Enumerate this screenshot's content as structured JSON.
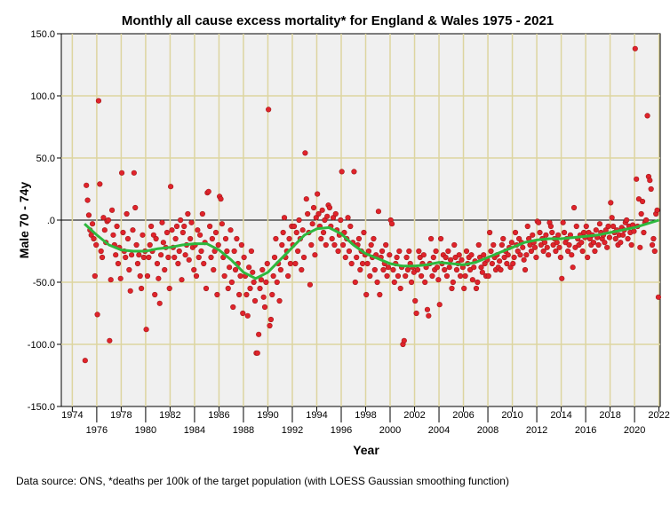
{
  "chart_data": {
    "type": "scatter",
    "title": "Monthly all cause excess mortality* for England & Wales 1975 - 2021",
    "xlabel": "Year",
    "ylabel": "Male 70 - 74y",
    "footnote": "Data source: ONS, *deaths per 100k of the target population (with LOESS Gaussian smoothing function)",
    "xlim": [
      1973.1,
      2022.1
    ],
    "ylim": [
      -150,
      150
    ],
    "y_ticks": [
      "150.0",
      "100.0",
      "50.0",
      ".0",
      "-50.0",
      "-100.0",
      "-150.0"
    ],
    "y_tick_values": [
      150,
      100,
      50,
      0,
      -50,
      -100,
      -150
    ],
    "x_ticks": [
      "1974",
      "1976",
      "1978",
      "1980",
      "1982",
      "1984",
      "1986",
      "1988",
      "1990",
      "1992",
      "1994",
      "1996",
      "1998",
      "2000",
      "2002",
      "2004",
      "2006",
      "2008",
      "2010",
      "2012",
      "2014",
      "2016",
      "2018",
      "2020",
      "2022"
    ],
    "grid": true,
    "colors": {
      "points": "#e0232b",
      "smooth": "#2db83d",
      "plot_bg": "#f0f0f0",
      "grid": "#ddd5a0"
    },
    "smooth": {
      "name": "LOESS",
      "x": [
        1975,
        1976,
        1977,
        1978,
        1979,
        1980,
        1981,
        1982,
        1983,
        1984,
        1985,
        1986,
        1987,
        1988,
        1989,
        1990,
        1991,
        1992,
        1993,
        1994,
        1995,
        1996,
        1997,
        1998,
        1999,
        2000,
        2001,
        2002,
        2003,
        2004,
        2005,
        2006,
        2007,
        2008,
        2009,
        2010,
        2011,
        2012,
        2013,
        2014,
        2015,
        2016,
        2017,
        2018,
        2019,
        2020,
        2021,
        2022
      ],
      "y": [
        -3,
        -12,
        -20,
        -24,
        -25,
        -25,
        -23,
        -22,
        -20,
        -19,
        -19,
        -24,
        -32,
        -42,
        -47,
        -42,
        -32,
        -22,
        -12,
        -7,
        -6,
        -11,
        -20,
        -27,
        -31,
        -35,
        -37,
        -37,
        -36,
        -34,
        -35,
        -36,
        -34,
        -30,
        -26,
        -22,
        -18,
        -16,
        -15,
        -15,
        -14,
        -13,
        -12,
        -10,
        -8,
        -6,
        -3,
        0
      ]
    },
    "points_by_year": {
      "1975": [
        -113,
        28,
        16,
        4,
        -8,
        -12,
        -3,
        -15,
        -45,
        -20
      ],
      "1976": [
        -76,
        96,
        29,
        -25,
        -30,
        2,
        -8,
        -18,
        -1,
        0
      ],
      "1977": [
        -97,
        -48,
        8,
        -12,
        -20,
        -28,
        -5,
        -35,
        -22,
        -47
      ],
      "1978": [
        38,
        -10,
        -25,
        -30,
        5,
        -15,
        -40,
        -57,
        -28,
        -8
      ],
      "1979": [
        38,
        10,
        -20,
        -35,
        -28,
        -45,
        -55,
        -12,
        -30,
        -25
      ],
      "1980": [
        -88,
        -45,
        -30,
        -20,
        -5,
        -25,
        -12,
        -60,
        -15,
        -35
      ],
      "1981": [
        -47,
        -67,
        -28,
        -2,
        -18,
        -40,
        -22,
        -10,
        -30,
        -55
      ],
      "1982": [
        27,
        -8,
        -22,
        -30,
        -15,
        -5,
        -35,
        -25,
        0,
        -48
      ],
      "1983": [
        -10,
        -5,
        -28,
        -20,
        5,
        -32,
        -15,
        -2,
        -22,
        -40
      ],
      "1984": [
        -20,
        -45,
        -8,
        -30,
        -12,
        -25,
        5,
        -35,
        -18,
        -55
      ],
      "1985": [
        22,
        23,
        -5,
        -30,
        -15,
        -40,
        -25,
        -10,
        -60,
        -20
      ],
      "1986": [
        19,
        17,
        -3,
        -30,
        -45,
        -15,
        -25,
        -55,
        -38,
        -8
      ],
      "1987": [
        -50,
        -70,
        -25,
        -40,
        -15,
        -35,
        -60,
        -45,
        -20,
        -75
      ],
      "1988": [
        -30,
        -45,
        -60,
        -77,
        -38,
        -55,
        -25,
        -42,
        -50,
        -65
      ],
      "1989": [
        -107,
        -107,
        -92,
        -55,
        -48,
        -40,
        -62,
        -70,
        -50,
        -35
      ],
      "1990": [
        89,
        -85,
        -80,
        -60,
        -45,
        -30,
        -15,
        -50,
        -35,
        -65
      ],
      "1991": [
        -40,
        -20,
        -10,
        2,
        -30,
        -25,
        -45,
        -15,
        -35,
        -5
      ],
      "1992": [
        -20,
        -5,
        -35,
        -10,
        -25,
        0,
        -15,
        -40,
        -8,
        -30
      ],
      "1993": [
        54,
        17,
        5,
        -10,
        -52,
        -20,
        -3,
        10,
        -28,
        2
      ],
      "1994": [
        21,
        5,
        -5,
        -15,
        8,
        -10,
        0,
        -20,
        3,
        12
      ],
      "1995": [
        10,
        -5,
        -15,
        2,
        -20,
        5,
        -8,
        -25,
        -12,
        0
      ],
      "1996": [
        39,
        -20,
        -10,
        -30,
        -15,
        2,
        -25,
        -5,
        -35,
        -18
      ],
      "1997": [
        39,
        -50,
        -30,
        -20,
        -15,
        -40,
        -25,
        -35,
        -10,
        -28
      ],
      "1998": [
        -60,
        -35,
        -25,
        -45,
        -20,
        -30,
        -15,
        -40,
        -28,
        -50
      ],
      "1999": [
        7,
        -60,
        -30,
        -25,
        -40,
        -35,
        -20,
        -45,
        -38,
        -28
      ],
      "2000": [
        0,
        -3,
        -40,
        -50,
        -35,
        -30,
        -45,
        -25,
        -55,
        -38
      ],
      "2001": [
        -100,
        -97,
        -45,
        -30,
        -40,
        -25,
        -35,
        -50,
        -38,
        -42
      ],
      "2002": [
        -65,
        -75,
        -40,
        -25,
        -30,
        -45,
        -35,
        -28,
        -50,
        -38
      ],
      "2003": [
        -72,
        -77,
        -35,
        -15,
        -45,
        -30,
        -40,
        -25,
        -38,
        -48
      ],
      "2004": [
        -68,
        -15,
        -35,
        -28,
        -40,
        -30,
        -45,
        -25,
        -38,
        -32
      ],
      "2005": [
        -55,
        -50,
        -20,
        -30,
        -40,
        -35,
        -28,
        -45,
        -32,
        -38
      ],
      "2006": [
        -55,
        -45,
        -25,
        -35,
        -30,
        -40,
        -28,
        -48,
        -38,
        -33
      ],
      "2007": [
        -55,
        -50,
        -20,
        -30,
        -38,
        -42,
        -28,
        -35,
        -45,
        -32
      ],
      "2008": [
        -45,
        -10,
        -25,
        -35,
        -20,
        -30,
        -40,
        -28,
        -38,
        -33
      ],
      "2009": [
        -40,
        -20,
        -15,
        -30,
        -25,
        -35,
        -28,
        -22,
        -38,
        -18
      ],
      "2010": [
        -35,
        -30,
        -10,
        -20,
        -25,
        -15,
        -28,
        -18,
        -22,
        -32
      ],
      "2011": [
        -40,
        -28,
        -5,
        -15,
        -20,
        -25,
        -12,
        -18,
        -22,
        -30
      ],
      "2012": [
        -1,
        -2,
        -10,
        -20,
        -15,
        -25,
        -18,
        -12,
        -22,
        -28
      ],
      "2013": [
        -2,
        -5,
        -10,
        -20,
        -15,
        -25,
        -18,
        -12,
        -22,
        -30
      ],
      "2014": [
        -47,
        -2,
        -10,
        -18,
        -15,
        -25,
        -20,
        -12,
        -28,
        -38
      ],
      "2015": [
        10,
        -22,
        -5,
        -15,
        -20,
        -12,
        -18,
        -25,
        -10,
        -14
      ],
      "2016": [
        -5,
        -30,
        -10,
        -15,
        -20,
        -12,
        -18,
        -25,
        -8,
        -14
      ],
      "2017": [
        -20,
        -3,
        -10,
        -15,
        -12,
        -18,
        -8,
        -22,
        -5,
        -14
      ],
      "2018": [
        14,
        2,
        -5,
        -10,
        -15,
        -8,
        -20,
        -12,
        -18,
        -6
      ],
      "2019": [
        -12,
        -8,
        -2,
        0,
        -15,
        -5,
        -10,
        -20,
        -4,
        -9
      ],
      "2020": [
        138,
        33,
        -5,
        17,
        -22,
        5,
        15,
        -10,
        -2,
        0
      ],
      "2021": [
        84,
        35,
        32,
        25,
        -20,
        -15,
        -25,
        5,
        8,
        -62
      ]
    }
  }
}
